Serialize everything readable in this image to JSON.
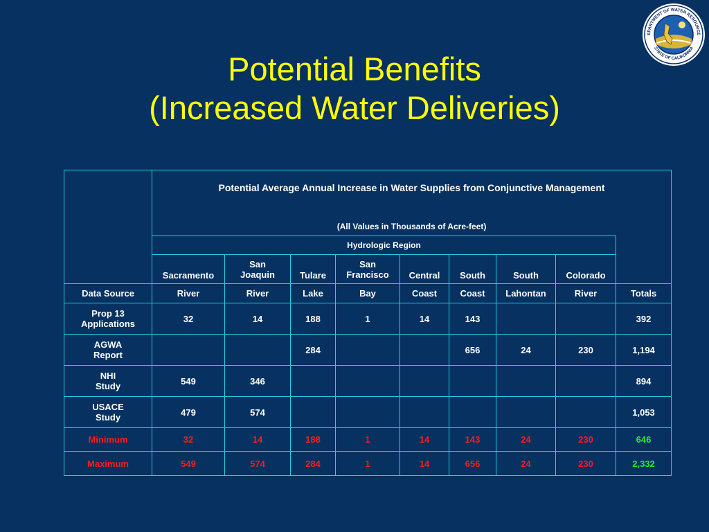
{
  "slide": {
    "title_line1": "Potential Benefits",
    "title_line2": "(Increased Water Deliveries)"
  },
  "seal": {
    "text_top": "DEPARTMENT OF WATER RESOURCES",
    "text_bottom": "STATE OF CALIFORNIA"
  },
  "table": {
    "caption": "Potential Average Annual Increase in Water Supplies from Conjunctive Management",
    "note": "(All Values in Thousands of Acre-feet)",
    "group_header": "Hydrologic Region",
    "columns_top": [
      "Sacramento",
      "San Joaquin",
      "Tulare",
      "San Francisco",
      "Central",
      "South",
      "South",
      "Colorado"
    ],
    "source_header": "Data Source",
    "columns_bottom": [
      "River",
      "River",
      "Lake",
      "Bay",
      "Coast",
      "Coast",
      "Lahontan",
      "River"
    ],
    "totals_header": "Totals",
    "rows": [
      {
        "source_l1": "Prop 13",
        "source_l2": "Applications",
        "values": [
          "32",
          "14",
          "188",
          "1",
          "14",
          "143",
          "",
          ""
        ],
        "total": "392"
      },
      {
        "source_l1": "AGWA",
        "source_l2": "Report",
        "values": [
          "",
          "",
          "284",
          "",
          "",
          "656",
          "24",
          "230"
        ],
        "total": "1,194"
      },
      {
        "source_l1": "NHI",
        "source_l2": "Study",
        "values": [
          "549",
          "346",
          "",
          "",
          "",
          "",
          "",
          ""
        ],
        "total": "894"
      },
      {
        "source_l1": "USACE",
        "source_l2": "Study",
        "values": [
          "479",
          "574",
          "",
          "",
          "",
          "",
          "",
          ""
        ],
        "total": "1,053"
      }
    ],
    "minimum": {
      "label": "Minimum",
      "values": [
        "32",
        "14",
        "188",
        "1",
        "14",
        "143",
        "24",
        "230"
      ],
      "total": "646"
    },
    "maximum": {
      "label": "Maximum",
      "values": [
        "549",
        "574",
        "284",
        "1",
        "14",
        "656",
        "24",
        "230"
      ],
      "total": "2,332"
    }
  },
  "colors": {
    "background": "#073160",
    "title": "#ffff00",
    "grid": "#21d0e8",
    "min_max": "#ff1a1a",
    "totals_highlight": "#22ee33"
  }
}
